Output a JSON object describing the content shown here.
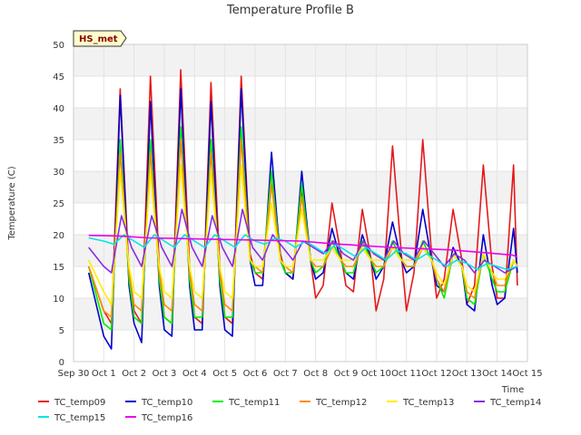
{
  "chart_data": {
    "type": "line",
    "title": "Temperature Profile B",
    "xlabel": "Time",
    "ylabel": "Temperature (C)",
    "ylim": [
      0,
      50
    ],
    "yticks": [
      0,
      5,
      10,
      15,
      20,
      25,
      30,
      35,
      40,
      45,
      50
    ],
    "xlim": [
      "2024-09-30",
      "2024-10-15"
    ],
    "xtick_labels": [
      "Sep 30",
      "Oct 1",
      "Oct 2",
      "Oct 3",
      "Oct 4",
      "Oct 5",
      "Oct 6",
      "Oct 7",
      "Oct 8",
      "Oct 9",
      "Oct 10",
      "Oct 11",
      "Oct 12",
      "Oct 13",
      "Oct 14",
      "Oct 15"
    ],
    "grid": true,
    "legend_position": "bottom",
    "badge": "HS_met",
    "series": [
      {
        "name": "TC_temp09",
        "color": "#e41a1c",
        "x": [
          "09-30 12:00",
          "10-01 00:00",
          "10-01 06:00",
          "10-01 13:00",
          "10-01 20:00",
          "10-02 00:00",
          "10-02 06:00",
          "10-02 13:00",
          "10-02 20:00",
          "10-03 00:00",
          "10-03 06:00",
          "10-03 13:00",
          "10-03 20:00",
          "10-04 00:00",
          "10-04 06:00",
          "10-04 13:00",
          "10-04 20:00",
          "10-05 00:00",
          "10-05 06:00",
          "10-05 13:00",
          "10-05 20:00",
          "10-06 00:00",
          "10-06 06:00",
          "10-06 13:00",
          "10-06 20:00",
          "10-07 00:00",
          "10-07 06:00",
          "10-07 13:00",
          "10-07 20:00",
          "10-08 00:00",
          "10-08 06:00",
          "10-08 13:00",
          "10-08 20:00",
          "10-09 00:00",
          "10-09 06:00",
          "10-09 13:00",
          "10-09 20:00",
          "10-10 00:00",
          "10-10 06:00",
          "10-10 13:00",
          "10-10 20:00",
          "10-11 00:00",
          "10-11 06:00",
          "10-11 13:00",
          "10-11 20:00",
          "10-12 00:00",
          "10-12 06:00",
          "10-12 13:00",
          "10-12 20:00",
          "10-13 00:00",
          "10-13 06:00",
          "10-13 13:00",
          "10-13 20:00",
          "10-14 00:00",
          "10-14 06:00",
          "10-14 13:00",
          "10-14 16:00"
        ],
        "y": [
          15,
          8,
          6,
          43,
          14,
          8,
          6,
          45,
          15,
          7,
          6,
          46,
          15,
          7,
          6,
          44,
          15,
          7,
          6,
          45,
          17,
          14,
          13,
          30,
          17,
          14,
          13,
          27,
          16,
          10,
          12,
          25,
          17,
          12,
          11,
          24,
          16,
          8,
          13,
          34,
          17,
          8,
          14,
          35,
          17,
          10,
          13,
          24,
          16,
          9,
          12,
          31,
          15,
          10,
          10,
          31,
          12
        ]
      },
      {
        "name": "TC_temp10",
        "color": "#0000cc",
        "x": [
          "09-30 12:00",
          "10-01 00:00",
          "10-01 06:00",
          "10-01 13:00",
          "10-01 20:00",
          "10-02 00:00",
          "10-02 06:00",
          "10-02 13:00",
          "10-02 20:00",
          "10-03 00:00",
          "10-03 06:00",
          "10-03 13:00",
          "10-03 20:00",
          "10-04 00:00",
          "10-04 06:00",
          "10-04 13:00",
          "10-04 20:00",
          "10-05 00:00",
          "10-05 06:00",
          "10-05 13:00",
          "10-05 20:00",
          "10-06 00:00",
          "10-06 06:00",
          "10-06 13:00",
          "10-06 20:00",
          "10-07 00:00",
          "10-07 06:00",
          "10-07 13:00",
          "10-07 20:00",
          "10-08 00:00",
          "10-08 06:00",
          "10-08 13:00",
          "10-08 20:00",
          "10-09 00:00",
          "10-09 06:00",
          "10-09 13:00",
          "10-09 20:00",
          "10-10 00:00",
          "10-10 06:00",
          "10-10 13:00",
          "10-10 20:00",
          "10-11 00:00",
          "10-11 06:00",
          "10-11 13:00",
          "10-11 20:00",
          "10-12 00:00",
          "10-12 06:00",
          "10-12 13:00",
          "10-12 20:00",
          "10-13 00:00",
          "10-13 06:00",
          "10-13 13:00",
          "10-13 20:00",
          "10-14 00:00",
          "10-14 06:00",
          "10-14 13:00",
          "10-14 16:00"
        ],
        "y": [
          14,
          4,
          2,
          42,
          12,
          6,
          3,
          41,
          12,
          5,
          4,
          43,
          12,
          5,
          5,
          41,
          12,
          5,
          4,
          43,
          16,
          12,
          12,
          33,
          16,
          14,
          13,
          30,
          16,
          13,
          14,
          21,
          16,
          14,
          13,
          20,
          16,
          13,
          15,
          22,
          16,
          14,
          15,
          24,
          16,
          12,
          11,
          18,
          15,
          9,
          8,
          20,
          12,
          9,
          10,
          21,
          14
        ]
      },
      {
        "name": "TC_temp11",
        "color": "#00ee00",
        "x": [
          "09-30 12:00",
          "10-01 00:00",
          "10-01 06:00",
          "10-01 13:00",
          "10-01 20:00",
          "10-02 00:00",
          "10-02 06:00",
          "10-02 13:00",
          "10-02 20:00",
          "10-03 00:00",
          "10-03 06:00",
          "10-03 13:00",
          "10-03 20:00",
          "10-04 00:00",
          "10-04 06:00",
          "10-04 13:00",
          "10-04 20:00",
          "10-05 00:00",
          "10-05 06:00",
          "10-05 13:00",
          "10-05 20:00",
          "10-06 00:00",
          "10-06 06:00",
          "10-06 13:00",
          "10-06 20:00",
          "10-07 00:00",
          "10-07 06:00",
          "10-07 13:00",
          "10-07 20:00",
          "10-08 00:00",
          "10-08 06:00",
          "10-08 13:00",
          "10-08 20:00",
          "10-09 00:00",
          "10-09 06:00",
          "10-09 13:00",
          "10-09 20:00",
          "10-10 00:00",
          "10-10 06:00",
          "10-10 13:00",
          "10-10 20:00",
          "10-11 00:00",
          "10-11 06:00",
          "10-11 13:00",
          "10-11 20:00",
          "10-12 00:00",
          "10-12 06:00",
          "10-12 13:00",
          "10-12 20:00",
          "10-13 00:00",
          "10-13 06:00",
          "10-13 13:00",
          "10-13 20:00",
          "10-14 00:00",
          "10-14 06:00",
          "10-14 13:00",
          "10-14 16:00"
        ],
        "y": [
          15,
          6,
          5,
          35,
          13,
          7,
          6,
          35,
          13,
          7,
          6,
          37,
          13,
          7,
          7,
          35,
          13,
          7,
          7,
          37,
          16,
          14,
          14,
          30,
          16,
          14,
          14,
          28,
          16,
          14,
          15,
          19,
          16,
          14,
          14,
          19,
          16,
          14,
          15,
          19,
          16,
          15,
          15,
          19,
          16,
          13,
          10,
          17,
          15,
          10,
          9,
          17,
          13,
          11,
          11,
          16,
          15
        ]
      },
      {
        "name": "TC_temp12",
        "color": "#ff8c00",
        "x": [
          "09-30 12:00",
          "10-01 00:00",
          "10-01 06:00",
          "10-01 13:00",
          "10-01 20:00",
          "10-02 00:00",
          "10-02 06:00",
          "10-02 13:00",
          "10-02 20:00",
          "10-03 00:00",
          "10-03 06:00",
          "10-03 13:00",
          "10-03 20:00",
          "10-04 00:00",
          "10-04 06:00",
          "10-04 13:00",
          "10-04 20:00",
          "10-05 00:00",
          "10-05 06:00",
          "10-05 13:00",
          "10-05 20:00",
          "10-06 00:00",
          "10-06 06:00",
          "10-06 13:00",
          "10-06 20:00",
          "10-07 00:00",
          "10-07 06:00",
          "10-07 13:00",
          "10-07 20:00",
          "10-08 00:00",
          "10-08 06:00",
          "10-08 13:00",
          "10-08 20:00",
          "10-09 00:00",
          "10-09 06:00",
          "10-09 13:00",
          "10-09 20:00",
          "10-10 00:00",
          "10-10 06:00",
          "10-10 13:00",
          "10-10 20:00",
          "10-11 00:00",
          "10-11 06:00",
          "10-11 13:00",
          "10-11 20:00",
          "10-12 00:00",
          "10-12 06:00",
          "10-12 13:00",
          "10-12 20:00",
          "10-13 00:00",
          "10-13 06:00",
          "10-13 13:00",
          "10-13 20:00",
          "10-14 00:00",
          "10-14 06:00",
          "10-14 13:00",
          "10-14 16:00"
        ],
        "y": [
          15,
          8,
          7,
          33,
          14,
          9,
          8,
          33,
          14,
          9,
          8,
          35,
          14,
          9,
          8,
          33,
          14,
          9,
          8,
          35,
          16,
          15,
          14,
          28,
          16,
          15,
          14,
          26,
          16,
          15,
          15,
          18,
          16,
          15,
          15,
          18,
          16,
          15,
          15,
          18,
          16,
          15,
          15,
          18,
          16,
          13,
          11,
          17,
          15,
          11,
          10,
          17,
          14,
          12,
          12,
          16,
          15
        ]
      },
      {
        "name": "TC_temp13",
        "color": "#ffee00",
        "x": [
          "09-30 12:00",
          "10-01 00:00",
          "10-01 06:00",
          "10-01 13:00",
          "10-01 20:00",
          "10-02 00:00",
          "10-02 06:00",
          "10-02 13:00",
          "10-02 20:00",
          "10-03 00:00",
          "10-03 06:00",
          "10-03 13:00",
          "10-03 20:00",
          "10-04 00:00",
          "10-04 06:00",
          "10-04 13:00",
          "10-04 20:00",
          "10-05 00:00",
          "10-05 06:00",
          "10-05 13:00",
          "10-05 20:00",
          "10-06 00:00",
          "10-06 06:00",
          "10-06 13:00",
          "10-06 20:00",
          "10-07 00:00",
          "10-07 06:00",
          "10-07 13:00",
          "10-07 20:00",
          "10-08 00:00",
          "10-08 06:00",
          "10-08 13:00",
          "10-08 20:00",
          "10-09 00:00",
          "10-09 06:00",
          "10-09 13:00",
          "10-09 20:00",
          "10-10 00:00",
          "10-10 06:00",
          "10-10 13:00",
          "10-10 20:00",
          "10-11 00:00",
          "10-11 06:00",
          "10-11 13:00",
          "10-11 20:00",
          "10-12 00:00",
          "10-12 06:00",
          "10-12 13:00",
          "10-12 20:00",
          "10-13 00:00",
          "10-13 06:00",
          "10-13 13:00",
          "10-13 20:00",
          "10-14 00:00",
          "10-14 06:00",
          "10-14 13:00",
          "10-14 16:00"
        ],
        "y": [
          16,
          11,
          9,
          30,
          15,
          11,
          10,
          30,
          15,
          11,
          10,
          31,
          15,
          11,
          10,
          30,
          15,
          11,
          10,
          31,
          16,
          15,
          15,
          25,
          16,
          15,
          15,
          24,
          16,
          16,
          16,
          18,
          16,
          16,
          16,
          18,
          16,
          16,
          16,
          18,
          16,
          16,
          16,
          18,
          16,
          14,
          12,
          17,
          15,
          12,
          11,
          17,
          14,
          13,
          13,
          16,
          15
        ]
      },
      {
        "name": "TC_temp14",
        "color": "#8a2be2",
        "x": [
          "09-30 12:00",
          "10-01 00:00",
          "10-01 06:00",
          "10-01 14:00",
          "10-01 22:00",
          "10-02 06:00",
          "10-02 14:00",
          "10-02 22:00",
          "10-03 06:00",
          "10-03 14:00",
          "10-03 22:00",
          "10-04 06:00",
          "10-04 14:00",
          "10-04 22:00",
          "10-05 06:00",
          "10-05 14:00",
          "10-05 22:00",
          "10-06 06:00",
          "10-06 14:00",
          "10-06 22:00",
          "10-07 06:00",
          "10-07 14:00",
          "10-07 22:00",
          "10-08 06:00",
          "10-08 14:00",
          "10-08 22:00",
          "10-09 06:00",
          "10-09 14:00",
          "10-09 22:00",
          "10-10 06:00",
          "10-10 14:00",
          "10-10 22:00",
          "10-11 06:00",
          "10-11 14:00",
          "10-11 22:00",
          "10-12 06:00",
          "10-12 14:00",
          "10-12 22:00",
          "10-13 06:00",
          "10-13 14:00",
          "10-13 22:00",
          "10-14 06:00",
          "10-14 16:00"
        ],
        "y": [
          18,
          15,
          14,
          23,
          18,
          15,
          23,
          18,
          15,
          24,
          18,
          15,
          23,
          18,
          15,
          24,
          18,
          16,
          20,
          18,
          16,
          19,
          18,
          17,
          19,
          17,
          16,
          19,
          17,
          16,
          19,
          17,
          16,
          19,
          17,
          15,
          17,
          16,
          14,
          16,
          15,
          14,
          15
        ]
      },
      {
        "name": "TC_temp15",
        "color": "#00e5e5",
        "x": [
          "09-30 12:00",
          "10-01 00:00",
          "10-01 08:00",
          "10-01 16:00",
          "10-02 00:00",
          "10-02 08:00",
          "10-02 16:00",
          "10-03 00:00",
          "10-03 08:00",
          "10-03 16:00",
          "10-04 00:00",
          "10-04 08:00",
          "10-04 16:00",
          "10-05 00:00",
          "10-05 08:00",
          "10-05 16:00",
          "10-06 00:00",
          "10-06 08:00",
          "10-06 16:00",
          "10-07 00:00",
          "10-07 08:00",
          "10-07 16:00",
          "10-08 00:00",
          "10-08 08:00",
          "10-08 16:00",
          "10-09 00:00",
          "10-09 08:00",
          "10-09 16:00",
          "10-10 00:00",
          "10-10 08:00",
          "10-10 16:00",
          "10-11 00:00",
          "10-11 08:00",
          "10-11 16:00",
          "10-12 00:00",
          "10-12 08:00",
          "10-12 16:00",
          "10-13 00:00",
          "10-13 08:00",
          "10-13 16:00",
          "10-14 00:00",
          "10-14 08:00",
          "10-14 16:00"
        ],
        "y": [
          19.5,
          19,
          18.5,
          20,
          19,
          18,
          20,
          19,
          18,
          20,
          19,
          18,
          20,
          19,
          18,
          20,
          19,
          18.5,
          19.5,
          19,
          18,
          19,
          18,
          17,
          18.5,
          17.5,
          16.5,
          18,
          17,
          16,
          17.5,
          17,
          16,
          17,
          16,
          15,
          16,
          15.5,
          14.5,
          15.5,
          15,
          14.5,
          15
        ]
      },
      {
        "name": "TC_temp16",
        "color": "#ee00ee",
        "x": [
          "09-30 12:00",
          "10-01 12:00",
          "10-02 12:00",
          "10-03 12:00",
          "10-04 12:00",
          "10-05 12:00",
          "10-06 12:00",
          "10-07 12:00",
          "10-08 12:00",
          "10-09 12:00",
          "10-10 12:00",
          "10-11 12:00",
          "10-12 12:00",
          "10-13 12:00",
          "10-14 12:00",
          "10-14 16:00"
        ],
        "y": [
          19.9,
          19.8,
          19.5,
          19.4,
          19.3,
          19.2,
          19.1,
          19.0,
          18.6,
          18.3,
          18.0,
          17.8,
          17.6,
          17.2,
          16.8,
          16.5
        ]
      }
    ]
  }
}
